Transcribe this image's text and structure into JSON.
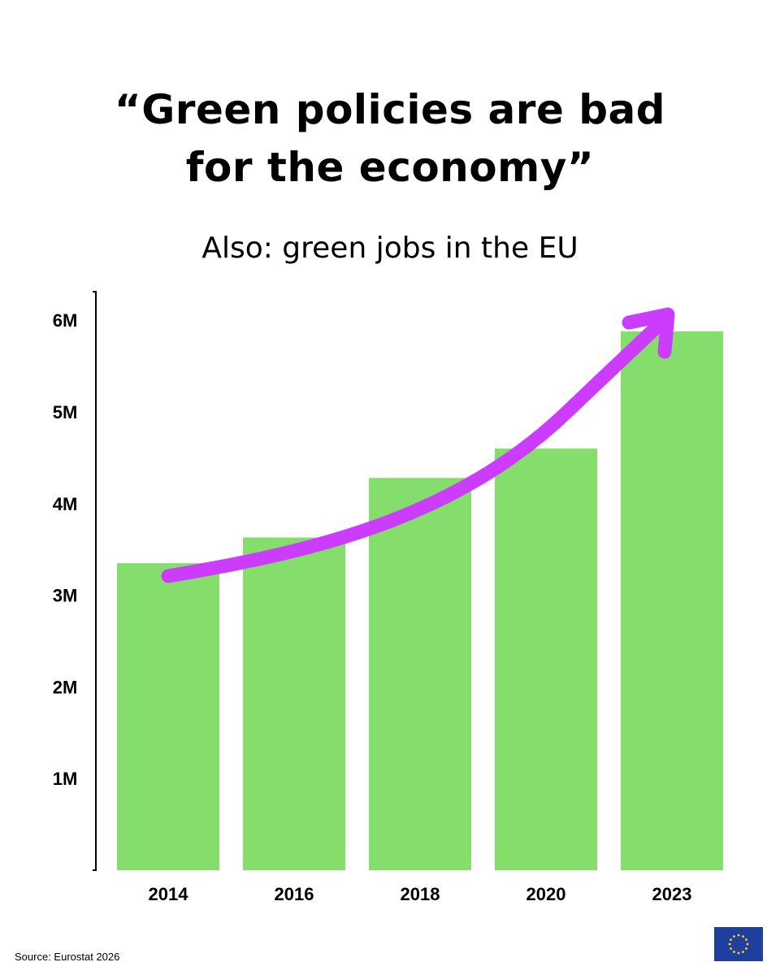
{
  "header": {
    "title_line1": "“Green policies are bad",
    "title_line2": "for the economy”",
    "subtitle": "Also: green jobs in the EU"
  },
  "footer": {
    "source": "Source: Eurostat 2026",
    "flag_icon": "eu-flag-icon"
  },
  "colors": {
    "bar": "#85de6c",
    "arrow": "#cc3cff",
    "axis": "#000000",
    "flag_blue": "#1f3f9e",
    "flag_stars": "#ffd617"
  },
  "chart_data": {
    "type": "bar",
    "categories": [
      "2014",
      "2016",
      "2018",
      "2020",
      "2023"
    ],
    "values": [
      3.35,
      3.63,
      4.28,
      4.6,
      5.88
    ],
    "unit": "M",
    "ylim": [
      0,
      6.1
    ],
    "yticks": [
      {
        "value": 1,
        "label": "1M"
      },
      {
        "value": 2,
        "label": "2M"
      },
      {
        "value": 3,
        "label": "3M"
      },
      {
        "value": 4,
        "label": "4M"
      },
      {
        "value": 5,
        "label": "5M"
      },
      {
        "value": 6,
        "label": "6M"
      }
    ],
    "grid": false,
    "legend": "none",
    "annotation": "upward-trend-arrow"
  }
}
